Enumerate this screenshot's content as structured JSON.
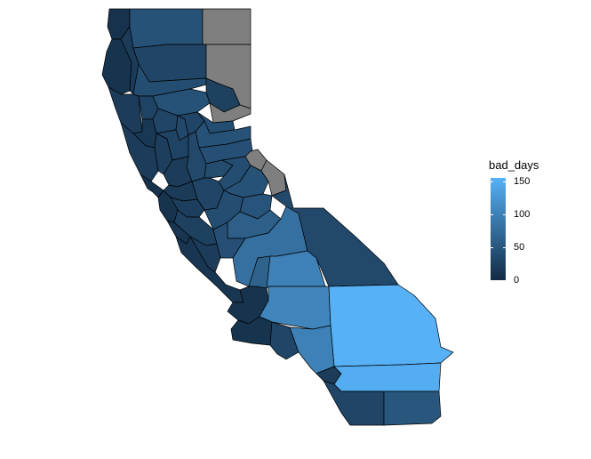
{
  "map": {
    "colors": {
      "na": "#7f7f7f",
      "low": "#132b43",
      "high": "#56b1f7"
    },
    "counties": [
      {
        "id": "del-norte",
        "value": 8
      },
      {
        "id": "siskiyou",
        "value": 45
      },
      {
        "id": "modoc",
        "value": null
      },
      {
        "id": "humboldt",
        "value": 10
      },
      {
        "id": "trinity",
        "value": 18
      },
      {
        "id": "shasta",
        "value": 30
      },
      {
        "id": "lassen",
        "value": null
      },
      {
        "id": "mendocino",
        "value": 20
      },
      {
        "id": "tehama",
        "value": 40
      },
      {
        "id": "plumas",
        "value": 25
      },
      {
        "id": "glenn",
        "value": 28
      },
      {
        "id": "butte",
        "value": 45
      },
      {
        "id": "sierra",
        "value": null
      },
      {
        "id": "lake",
        "value": 15
      },
      {
        "id": "colusa",
        "value": 30
      },
      {
        "id": "sutter",
        "value": 35
      },
      {
        "id": "yuba",
        "value": 30
      },
      {
        "id": "nevada",
        "value": 40
      },
      {
        "id": "placer",
        "value": 45
      },
      {
        "id": "el-dorado",
        "value": 42
      },
      {
        "id": "alpine",
        "value": null
      },
      {
        "id": "sonoma",
        "value": 20
      },
      {
        "id": "napa",
        "value": 22
      },
      {
        "id": "yolo",
        "value": 28
      },
      {
        "id": "sacramento",
        "value": 35
      },
      {
        "id": "amador",
        "value": 38
      },
      {
        "id": "calaveras",
        "value": 40
      },
      {
        "id": "tuolumne",
        "value": 45
      },
      {
        "id": "mono",
        "value": null
      },
      {
        "id": "marin",
        "value": 8
      },
      {
        "id": "solano",
        "value": 20
      },
      {
        "id": "san-joaquin",
        "value": 30
      },
      {
        "id": "stanislaus",
        "value": 40
      },
      {
        "id": "mariposa",
        "value": 48
      },
      {
        "id": "madera",
        "value": 60
      },
      {
        "id": "contra-costa",
        "value": 18
      },
      {
        "id": "alameda",
        "value": 22
      },
      {
        "id": "san-mateo",
        "value": 10
      },
      {
        "id": "santa-clara",
        "value": 25
      },
      {
        "id": "santa-cruz",
        "value": 12
      },
      {
        "id": "san-benito",
        "value": 20
      },
      {
        "id": "merced",
        "value": 42
      },
      {
        "id": "fresno",
        "value": 80
      },
      {
        "id": "inyo",
        "value": 35
      },
      {
        "id": "monterey",
        "value": 12
      },
      {
        "id": "kings",
        "value": 65
      },
      {
        "id": "tulare",
        "value": 100
      },
      {
        "id": "san-luis-obispo",
        "value": 10
      },
      {
        "id": "kern",
        "value": 105
      },
      {
        "id": "san-bernardino",
        "value": 155
      },
      {
        "id": "santa-barbara",
        "value": 10
      },
      {
        "id": "ventura",
        "value": 30
      },
      {
        "id": "los-angeles",
        "value": 100
      },
      {
        "id": "orange",
        "value": 20
      },
      {
        "id": "riverside",
        "value": 150
      },
      {
        "id": "san-diego",
        "value": 30
      },
      {
        "id": "imperial",
        "value": 50
      }
    ]
  },
  "legend": {
    "title": "bad_days",
    "min": 0,
    "max": 155,
    "ticks": [
      {
        "value": 0,
        "label": "0"
      },
      {
        "value": 50,
        "label": "50"
      },
      {
        "value": 100,
        "label": "100"
      },
      {
        "value": 150,
        "label": "150"
      }
    ]
  }
}
